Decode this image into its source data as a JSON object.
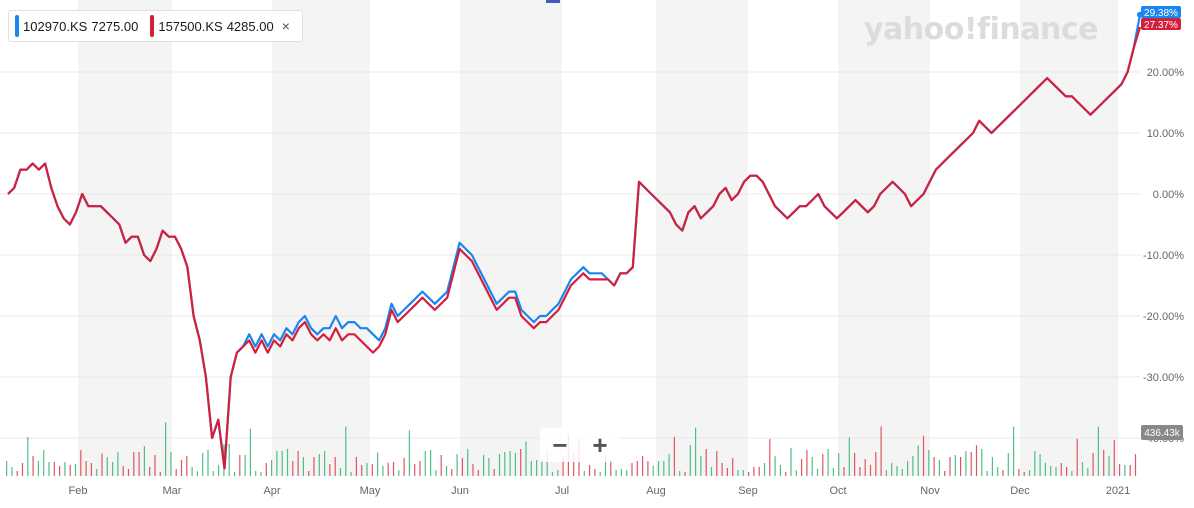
{
  "legend": {
    "items": [
      {
        "symbol": "102970.KS",
        "price": "7275.00",
        "color": "#1a86f0"
      },
      {
        "symbol": "157500.KS",
        "price": "4285.00",
        "color": "#d2203c"
      }
    ],
    "close_glyph": "×"
  },
  "watermark": "yahoo!finance",
  "zoom": {
    "minus": "−",
    "plus": "+"
  },
  "chart_data": {
    "type": "line",
    "x_ticks": [
      "Feb",
      "Mar",
      "Apr",
      "May",
      "Jun",
      "Jul",
      "Aug",
      "Sep",
      "Oct",
      "Nov",
      "Dec",
      "2021"
    ],
    "y_ticks": [
      "20.00%",
      "10.00%",
      "0.00%",
      "-10.00%",
      "-20.00%",
      "-30.00%",
      "-40.00%"
    ],
    "ylim": [
      -45,
      31
    ],
    "volume_label": "436.43k",
    "end_labels": [
      {
        "text": "29.38%",
        "value": 29.38,
        "color": "#1a86f0"
      },
      {
        "text": "27.37%",
        "value": 27.37,
        "color": "#d2203c"
      }
    ],
    "series": [
      {
        "name": "102970.KS",
        "color": "#1a86f0",
        "values": [
          0,
          1,
          4,
          4,
          5,
          4,
          5,
          1,
          -2,
          -4,
          -5,
          -3,
          0,
          -2,
          -2,
          -2,
          -3,
          -4,
          -5,
          -8,
          -7,
          -7,
          -10,
          -11,
          -9,
          -6,
          -7,
          -7,
          -9,
          -12,
          -20,
          -24,
          -30,
          -40,
          -37,
          -45,
          -30,
          -26,
          -25,
          -23,
          -25,
          -23,
          -25,
          -23,
          -24,
          -22,
          -23,
          -21,
          -20,
          -22,
          -23,
          -22,
          -22,
          -20,
          -22,
          -21,
          -21,
          -22,
          -22,
          -23,
          -24,
          -22,
          -18,
          -20,
          -19,
          -18,
          -17,
          -16,
          -17,
          -18,
          -17,
          -16,
          -12,
          -8,
          -9,
          -10,
          -12,
          -14,
          -16,
          -18,
          -17,
          -16,
          -16,
          -19,
          -20,
          -21,
          -20,
          -20,
          -19,
          -18,
          -16,
          -14,
          -13,
          -12,
          -13,
          -13,
          -13,
          -14,
          -15,
          -13,
          -13,
          -12,
          2,
          1,
          0,
          -1,
          -2,
          -3,
          -5,
          -6,
          -3,
          -2,
          -4,
          -3,
          -2,
          0,
          1,
          -1,
          0,
          2,
          3,
          3,
          2,
          0,
          -2,
          -3,
          -4,
          -3,
          -2,
          -2,
          -1,
          0,
          -2,
          -3,
          -4,
          -3,
          -2,
          -1,
          -2,
          -3,
          -2,
          0,
          1,
          2,
          1,
          0,
          -2,
          -1,
          0,
          2,
          4,
          5,
          6,
          7,
          8,
          9,
          10,
          12,
          11,
          10,
          11,
          12,
          13,
          14,
          15,
          16,
          17,
          18,
          19,
          18,
          17,
          16,
          16,
          15,
          14,
          13,
          14,
          15,
          16,
          17,
          18,
          20,
          24,
          29.38
        ]
      },
      {
        "name": "157500.KS",
        "color": "#d2203c",
        "values": [
          0,
          1,
          4,
          4,
          5,
          4,
          5,
          1,
          -2,
          -4,
          -5,
          -3,
          0,
          -2,
          -2,
          -2,
          -3,
          -4,
          -5,
          -8,
          -7,
          -7,
          -10,
          -11,
          -9,
          -6,
          -7,
          -7,
          -9,
          -12,
          -20,
          -24,
          -30,
          -40,
          -37,
          -45,
          -30,
          -26,
          -25,
          -24,
          -26,
          -24,
          -26,
          -24,
          -25,
          -23,
          -24,
          -22,
          -21,
          -23,
          -24,
          -23,
          -24,
          -22,
          -24,
          -23,
          -23,
          -24,
          -25,
          -26,
          -25,
          -23,
          -19,
          -21,
          -20,
          -19,
          -18,
          -17,
          -18,
          -19,
          -18,
          -17,
          -13,
          -9,
          -10,
          -11,
          -13,
          -15,
          -17,
          -19,
          -18,
          -17,
          -17,
          -20,
          -21,
          -22,
          -21,
          -21,
          -20,
          -19,
          -17,
          -15,
          -14,
          -13,
          -14,
          -14,
          -14,
          -14,
          -15,
          -13,
          -13,
          -12,
          2,
          1,
          0,
          -1,
          -2,
          -3,
          -5,
          -6,
          -3,
          -2,
          -4,
          -3,
          -2,
          0,
          1,
          -1,
          0,
          2,
          3,
          3,
          2,
          0,
          -2,
          -3,
          -4,
          -3,
          -2,
          -2,
          -1,
          0,
          -2,
          -3,
          -4,
          -3,
          -2,
          -1,
          -2,
          -3,
          -2,
          0,
          1,
          2,
          1,
          0,
          -2,
          -1,
          0,
          2,
          4,
          5,
          6,
          7,
          8,
          9,
          10,
          12,
          11,
          10,
          11,
          12,
          13,
          14,
          15,
          16,
          17,
          18,
          19,
          18,
          17,
          16,
          16,
          15,
          14,
          13,
          14,
          15,
          16,
          17,
          18,
          20,
          24,
          27.37
        ]
      }
    ],
    "grid": true,
    "shaded_month_bands": true
  }
}
